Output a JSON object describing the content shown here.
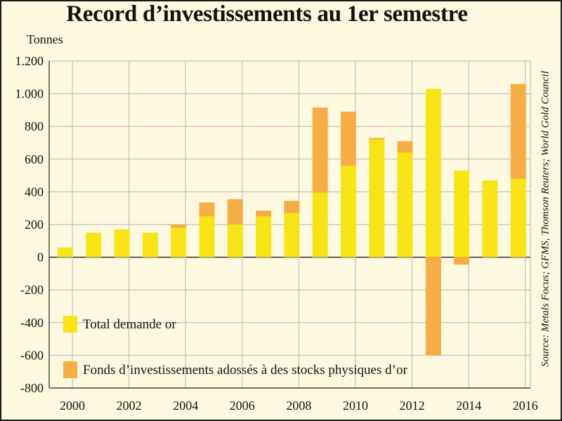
{
  "chart_data": {
    "type": "bar",
    "stacked": true,
    "title": "Record d’investissements au 1er semestre",
    "ylabel": "Tonnes",
    "source": "Source: Metals Focus; GFMS, Thomson Reuters; World Gold Council",
    "ylim": [
      -800,
      1200
    ],
    "y_ticks": [
      1200,
      1000,
      800,
      600,
      400,
      200,
      0,
      -200,
      -400,
      -600,
      -800
    ],
    "y_tick_labels": [
      "1.200",
      "1.000",
      "800",
      "600",
      "400",
      "200",
      "0",
      "-200",
      "-400",
      "-600",
      "-800"
    ],
    "grid": true,
    "legend_position": "bottom-left",
    "x_tick_labels": [
      "2000",
      "2002",
      "2004",
      "2006",
      "2008",
      "2010",
      "2012",
      "2014",
      "2016"
    ],
    "categories": [
      "2000",
      "2001",
      "2002",
      "2003",
      "2004",
      "2005",
      "2006",
      "2007",
      "2008",
      "2009",
      "2010",
      "2011",
      "2012",
      "2013",
      "2014",
      "2015",
      "2016"
    ],
    "series": [
      {
        "name": "Total demande or",
        "color": "#f7e316",
        "values": [
          60,
          150,
          170,
          150,
          180,
          250,
          200,
          250,
          270,
          395,
          560,
          720,
          640,
          1030,
          530,
          470,
          480
        ]
      },
      {
        "name": "Fonds d’investissements adossés à des stocks physiques d’or",
        "color": "#f6ad45",
        "values": [
          0,
          0,
          0,
          0,
          20,
          85,
          155,
          35,
          75,
          520,
          330,
          10,
          70,
          -600,
          -45,
          0,
          580
        ]
      }
    ]
  }
}
